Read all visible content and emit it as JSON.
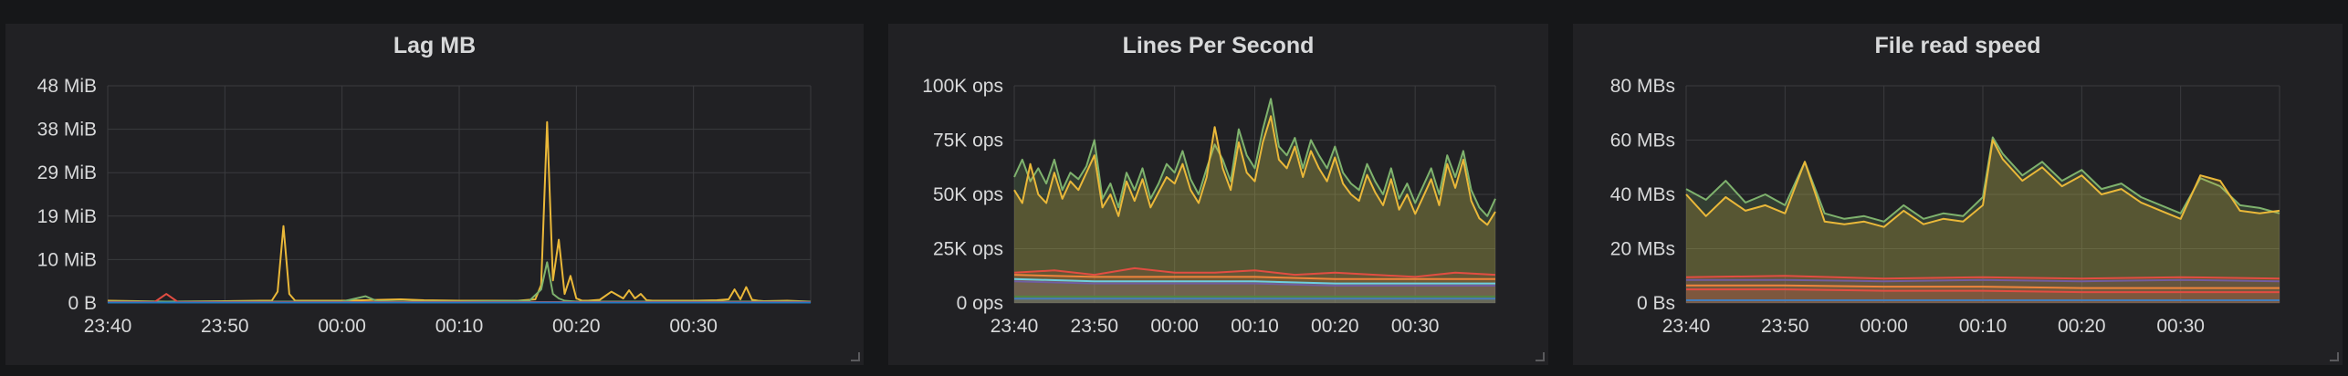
{
  "chart_data": [
    {
      "type": "line",
      "title": "Lag MB",
      "y_tick_labels": [
        "0 B",
        "10 MiB",
        "19 MiB",
        "29 MiB",
        "38 MiB",
        "48 MiB"
      ],
      "x_tick_labels": [
        "23:40",
        "23:50",
        "00:00",
        "00:10",
        "00:20",
        "00:30"
      ],
      "x_tick_minutes": [
        0,
        10,
        20,
        30,
        40,
        50
      ],
      "xlim": [
        0,
        60
      ],
      "ylim": [
        0,
        48
      ],
      "y_unit": "MiB",
      "grid": true,
      "series": [
        {
          "color": "#eab839",
          "x": [
            0,
            5,
            10,
            13,
            14,
            14.5,
            15,
            15.5,
            16,
            20,
            25,
            27,
            30,
            35,
            36.5,
            37,
            37.5,
            38,
            38.5,
            39,
            39.5,
            40,
            40.5,
            41,
            41.5,
            42,
            43,
            44,
            44.5,
            45,
            45.5,
            46,
            46.5,
            47,
            50,
            52,
            53,
            53.5,
            54,
            54.5,
            55,
            55.5,
            56,
            58,
            60
          ],
          "y": [
            0.5,
            0.3,
            0.4,
            0.5,
            0.5,
            2.5,
            17,
            2,
            0.5,
            0.5,
            0.8,
            0.6,
            0.5,
            0.5,
            0.8,
            4,
            40,
            5,
            14,
            2,
            6,
            1,
            0.5,
            0.5,
            0.6,
            0.7,
            2.5,
            1,
            2.8,
            1,
            2,
            0.6,
            0.5,
            0.5,
            0.5,
            0.6,
            0.8,
            3,
            0.8,
            3.5,
            0.7,
            0.5,
            0.4,
            0.5,
            0.3
          ]
        },
        {
          "color": "#7eb26d",
          "x": [
            0,
            10,
            20,
            22,
            23,
            25,
            30,
            36,
            37,
            37.5,
            38,
            38.5,
            39,
            40,
            45,
            50,
            60
          ],
          "y": [
            0.3,
            0.3,
            0.3,
            1.5,
            0.4,
            0.3,
            0.3,
            0.5,
            3,
            9,
            2,
            1,
            0.5,
            0.3,
            0.3,
            0.3,
            0.3
          ]
        },
        {
          "color": "#e24d42",
          "x": [
            0,
            4,
            5,
            6,
            60
          ],
          "y": [
            0.2,
            0.2,
            2,
            0.2,
            0.2
          ]
        },
        {
          "color": "#1f78c1",
          "x": [
            0,
            60
          ],
          "y": [
            0.1,
            0.1
          ]
        }
      ]
    },
    {
      "type": "area",
      "title": "Lines Per Second",
      "y_tick_labels": [
        "0 ops",
        "25K ops",
        "50K ops",
        "75K ops",
        "100K ops"
      ],
      "x_tick_labels": [
        "23:40",
        "23:50",
        "00:00",
        "00:10",
        "00:20",
        "00:30"
      ],
      "x_tick_minutes": [
        0,
        10,
        20,
        30,
        40,
        50
      ],
      "xlim": [
        0,
        60
      ],
      "ylim": [
        0,
        100
      ],
      "y_unit": "K ops",
      "grid": true,
      "series": [
        {
          "color": "#7eb26d",
          "x": [
            0,
            1,
            2,
            3,
            4,
            5,
            6,
            7,
            8,
            9,
            10,
            11,
            12,
            13,
            14,
            15,
            16,
            17,
            18,
            19,
            20,
            21,
            22,
            23,
            24,
            25,
            26,
            27,
            28,
            29,
            30,
            31,
            32,
            33,
            34,
            35,
            36,
            37,
            38,
            39,
            40,
            41,
            42,
            43,
            44,
            45,
            46,
            47,
            48,
            49,
            50,
            51,
            52,
            53,
            54,
            55,
            56,
            57,
            58,
            59,
            60
          ],
          "y": [
            58,
            66,
            56,
            62,
            55,
            66,
            52,
            60,
            57,
            63,
            75,
            48,
            55,
            44,
            60,
            52,
            62,
            48,
            55,
            64,
            60,
            70,
            57,
            50,
            62,
            73,
            66,
            56,
            80,
            68,
            62,
            80,
            94,
            72,
            68,
            76,
            62,
            75,
            68,
            62,
            72,
            60,
            55,
            52,
            64,
            56,
            50,
            62,
            48,
            55,
            46,
            54,
            62,
            50,
            68,
            58,
            70,
            52,
            44,
            40,
            48
          ]
        },
        {
          "color": "#eab839",
          "x": [
            0,
            1,
            2,
            3,
            4,
            5,
            6,
            7,
            8,
            9,
            10,
            11,
            12,
            13,
            14,
            15,
            16,
            17,
            18,
            19,
            20,
            21,
            22,
            23,
            24,
            25,
            26,
            27,
            28,
            29,
            30,
            31,
            32,
            33,
            34,
            35,
            36,
            37,
            38,
            39,
            40,
            41,
            42,
            43,
            44,
            45,
            46,
            47,
            48,
            49,
            50,
            51,
            52,
            53,
            54,
            55,
            56,
            57,
            58,
            59,
            60
          ],
          "y": [
            52,
            46,
            64,
            50,
            46,
            60,
            48,
            56,
            52,
            60,
            68,
            44,
            50,
            40,
            56,
            47,
            57,
            44,
            51,
            58,
            55,
            64,
            52,
            46,
            58,
            81,
            62,
            52,
            74,
            60,
            56,
            74,
            86,
            66,
            62,
            72,
            58,
            70,
            62,
            56,
            67,
            55,
            50,
            47,
            59,
            51,
            45,
            57,
            43,
            50,
            41,
            49,
            57,
            45,
            64,
            53,
            66,
            47,
            39,
            36,
            42
          ]
        },
        {
          "color": "#e24d42",
          "x": [
            0,
            5,
            10,
            15,
            20,
            25,
            30,
            35,
            40,
            45,
            50,
            55,
            60
          ],
          "y": [
            14,
            15,
            13,
            16,
            14,
            14,
            15,
            13,
            14,
            13,
            12,
            14,
            13
          ]
        },
        {
          "color": "#ef843c",
          "x": [
            0,
            10,
            20,
            30,
            40,
            50,
            60
          ],
          "y": [
            13,
            12,
            12,
            12,
            11,
            11,
            11
          ]
        },
        {
          "color": "#6ed0e0",
          "x": [
            0,
            10,
            20,
            30,
            40,
            50,
            60
          ],
          "y": [
            11,
            10,
            10,
            10,
            9,
            9,
            9
          ]
        },
        {
          "color": "#705da0",
          "x": [
            0,
            10,
            20,
            30,
            40,
            50,
            60
          ],
          "y": [
            10,
            9,
            9,
            9,
            8,
            8,
            8
          ]
        },
        {
          "color": "#508642",
          "x": [
            0,
            10,
            20,
            30,
            40,
            50,
            60
          ],
          "y": [
            3,
            3,
            3,
            3,
            3,
            3,
            3
          ]
        },
        {
          "color": "#447ebc",
          "x": [
            0,
            10,
            20,
            30,
            40,
            50,
            60
          ],
          "y": [
            2,
            2,
            2,
            2,
            2,
            2,
            2
          ]
        }
      ]
    },
    {
      "type": "area",
      "title": "File read speed",
      "y_tick_labels": [
        "0 Bs",
        "20 MBs",
        "40 MBs",
        "60 MBs",
        "80 MBs"
      ],
      "x_tick_labels": [
        "23:40",
        "23:50",
        "00:00",
        "00:10",
        "00:20",
        "00:30"
      ],
      "x_tick_minutes": [
        0,
        10,
        20,
        30,
        40,
        50
      ],
      "xlim": [
        0,
        60
      ],
      "ylim": [
        0,
        80
      ],
      "y_unit": "MBs",
      "grid": true,
      "series": [
        {
          "color": "#7eb26d",
          "x": [
            0,
            2,
            4,
            6,
            8,
            10,
            12,
            14,
            16,
            18,
            20,
            22,
            24,
            26,
            28,
            30,
            31,
            32,
            34,
            36,
            38,
            40,
            42,
            44,
            46,
            48,
            50,
            52,
            54,
            56,
            58,
            60
          ],
          "y": [
            42,
            38,
            45,
            37,
            40,
            36,
            52,
            33,
            31,
            32,
            30,
            36,
            31,
            33,
            32,
            39,
            61,
            55,
            47,
            52,
            45,
            49,
            42,
            44,
            39,
            36,
            33,
            46,
            43,
            36,
            35,
            33
          ]
        },
        {
          "color": "#eab839",
          "x": [
            0,
            2,
            4,
            6,
            8,
            10,
            12,
            14,
            16,
            18,
            20,
            22,
            24,
            26,
            28,
            30,
            31,
            32,
            34,
            36,
            38,
            40,
            42,
            44,
            46,
            48,
            50,
            52,
            54,
            56,
            58,
            60
          ],
          "y": [
            40,
            32,
            39,
            34,
            36,
            33,
            52,
            30,
            29,
            30,
            28,
            34,
            29,
            31,
            30,
            36,
            60,
            53,
            45,
            50,
            43,
            47,
            40,
            42,
            37,
            34,
            31,
            47,
            45,
            34,
            33,
            34
          ]
        },
        {
          "color": "#e24d42",
          "x": [
            0,
            10,
            20,
            30,
            40,
            50,
            60
          ],
          "y": [
            9.5,
            10,
            9,
            9.5,
            9,
            9.5,
            9
          ]
        },
        {
          "color": "#705da0",
          "x": [
            0,
            10,
            20,
            30,
            40,
            50,
            60
          ],
          "y": [
            8.5,
            8.5,
            8,
            8.5,
            8,
            8.5,
            8
          ]
        },
        {
          "color": "#ef843c",
          "x": [
            0,
            10,
            20,
            30,
            40,
            50,
            60
          ],
          "y": [
            6.5,
            6.5,
            6,
            6,
            5.5,
            5.5,
            5.5
          ]
        },
        {
          "color": "#e24d42",
          "x": [
            0,
            10,
            20,
            30,
            40,
            50,
            60
          ],
          "y": [
            5,
            5,
            4.5,
            4.5,
            4,
            4,
            4
          ]
        },
        {
          "color": "#447ebc",
          "x": [
            0,
            10,
            20,
            30,
            40,
            50,
            60
          ],
          "y": [
            1,
            1,
            1,
            1,
            1,
            1,
            1
          ]
        }
      ]
    }
  ]
}
